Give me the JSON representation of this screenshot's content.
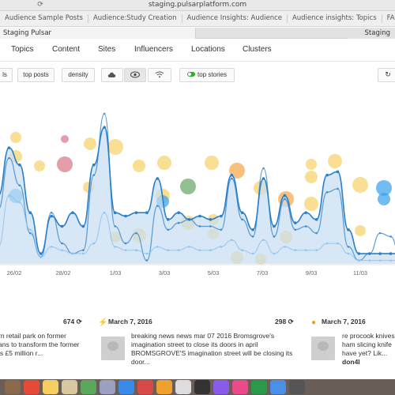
{
  "browser": {
    "url": "staging.pulsarplatform.com",
    "bookmarks": [
      "Audience Sample Posts",
      "Audience:Study Creation",
      "Audience Insights: Audience",
      "Audience insights: Topics",
      "FACE-Pulsar Stack"
    ],
    "tabs": {
      "left": "Staging Pulsar",
      "right": "Staging Pulsar"
    }
  },
  "nav": {
    "items": [
      "Topics",
      "Content",
      "Sites",
      "Influencers",
      "Locations",
      "Clusters"
    ]
  },
  "toolbar": {
    "btn1": "ls",
    "btn2": "top posts",
    "btn3": "density",
    "toggle_label": "top stories"
  },
  "chart_data": {
    "type": "line",
    "x_ticks": [
      "26/02",
      "28/02",
      "1/03",
      "3/03",
      "5/03",
      "7/03",
      "9/03",
      "11/03"
    ],
    "series": [
      {
        "values": [
          32,
          62,
          46,
          18,
          4,
          30,
          12,
          6,
          8,
          52,
          88,
          22,
          12,
          18,
          2,
          34,
          20,
          24,
          26,
          22,
          22,
          20,
          50,
          26,
          16,
          56,
          16,
          38,
          20,
          22,
          18,
          42,
          44,
          10,
          2,
          6,
          18,
          16,
          2
        ]
      },
      {
        "values": [
          40,
          68,
          58,
          30,
          6,
          28,
          22,
          30,
          22,
          58,
          80,
          30,
          28,
          30,
          30,
          50,
          26,
          30,
          26,
          28,
          26,
          28,
          52,
          30,
          20,
          50,
          22,
          40,
          24,
          30,
          26,
          52,
          54,
          20,
          6,
          6,
          6,
          6,
          6
        ]
      },
      {
        "values": [
          10,
          40,
          36,
          20,
          4,
          10,
          8,
          6,
          6,
          12,
          30,
          10,
          8,
          8,
          6,
          10,
          8,
          8,
          10,
          8,
          8,
          10,
          14,
          8,
          6,
          14,
          6,
          10,
          8,
          8,
          8,
          12,
          12,
          6,
          2,
          2,
          2,
          2,
          2
        ]
      }
    ],
    "colors": {
      "line": "#2a7fc7",
      "fill": "#c7ddf2",
      "bubble_yellow": "#f5d26a",
      "bubble_orange": "#f5a84a",
      "bubble_red": "#d9778a",
      "bubble_green": "#6aa86a",
      "bubble_blue": "#3aa3ee"
    }
  },
  "stats": {
    "left_count": "674",
    "left_date": "March 7, 2016",
    "right_count": "298",
    "right_date": "March 7, 2016"
  },
  "posts": {
    "p1": [
      "rn retail park on former",
      "ans to transform the former",
      "is £5 million r..."
    ],
    "p2": [
      "breaking news news mar 07 2016 Bromsgrove's",
      "imagination street to close its doors in april",
      "BROMSGROVE'S imagination street will be closing its",
      "door..."
    ],
    "p3": [
      "re procook knives",
      "ham slicing knife",
      "have yet? Lik...",
      "don4l"
    ]
  }
}
